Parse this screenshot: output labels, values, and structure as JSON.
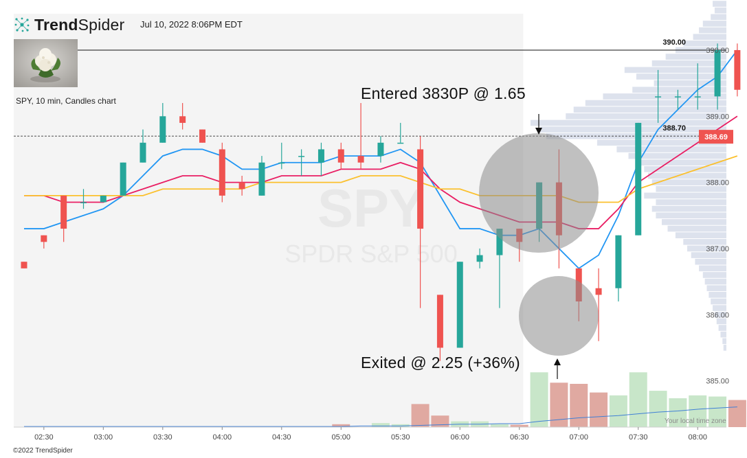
{
  "brand": {
    "name_bold": "Trend",
    "name_light": "Spider",
    "logo_icon": "spider-dots-icon",
    "accent": "#26a69a"
  },
  "header": {
    "datetime": "Jul 10, 2022 8:06PM EDT"
  },
  "thumbnail": {
    "icon": "cauliflower-photo"
  },
  "chart_info": {
    "symbol_line": "SPY, 10 min, Candles chart",
    "watermark_symbol": "SPY",
    "watermark_name": "SPDR S&P 500"
  },
  "annotations": {
    "entered": "Entered 3830P @ 1.65",
    "exited": "Exited @ 2.25 (+36%)"
  },
  "footer": {
    "copyright": "©2022 TrendSpider",
    "timezone_note": "Your local time zone"
  },
  "chart_data": {
    "type": "candlestick",
    "interval": "10 min",
    "x_ticks": [
      "02:30",
      "03:00",
      "03:30",
      "04:00",
      "04:30",
      "05:00",
      "05:30",
      "06:00",
      "06:30",
      "07:00",
      "07:30",
      "08:00"
    ],
    "y_ticks": [
      385.0,
      386.0,
      387.0,
      388.0,
      389.0,
      390.0
    ],
    "ylim": [
      384.3,
      390.55
    ],
    "price_labels": {
      "resistance": "390.00",
      "level": "388.70",
      "last": "388.69"
    },
    "levels": {
      "resistance": 390.0,
      "dashed": 388.7,
      "last": 388.69
    },
    "candles": [
      {
        "o": 386.8,
        "h": 386.8,
        "l": 386.7,
        "c": 386.7
      },
      {
        "o": 387.2,
        "h": 387.2,
        "l": 387.0,
        "c": 387.1
      },
      {
        "o": 387.8,
        "h": 387.8,
        "l": 387.1,
        "c": 387.3
      },
      {
        "o": 387.7,
        "h": 387.9,
        "l": 387.6,
        "c": 387.7
      },
      {
        "o": 387.7,
        "h": 387.8,
        "l": 387.7,
        "c": 387.8
      },
      {
        "o": 387.8,
        "h": 388.3,
        "l": 387.8,
        "c": 388.3
      },
      {
        "o": 388.3,
        "h": 388.8,
        "l": 388.3,
        "c": 388.6
      },
      {
        "o": 388.6,
        "h": 389.2,
        "l": 388.6,
        "c": 389.0
      },
      {
        "o": 389.0,
        "h": 389.2,
        "l": 388.8,
        "c": 388.9
      },
      {
        "o": 388.8,
        "h": 388.8,
        "l": 388.6,
        "c": 388.6
      },
      {
        "o": 388.5,
        "h": 388.6,
        "l": 387.7,
        "c": 387.8
      },
      {
        "o": 388.0,
        "h": 388.1,
        "l": 387.8,
        "c": 387.9
      },
      {
        "o": 387.8,
        "h": 388.4,
        "l": 387.8,
        "c": 388.3
      },
      {
        "o": 388.3,
        "h": 388.6,
        "l": 388.2,
        "c": 388.3
      },
      {
        "o": 388.4,
        "h": 388.5,
        "l": 388.1,
        "c": 388.4
      },
      {
        "o": 388.3,
        "h": 388.6,
        "l": 388.1,
        "c": 388.5
      },
      {
        "o": 388.5,
        "h": 388.6,
        "l": 388.2,
        "c": 388.3
      },
      {
        "o": 388.4,
        "h": 389.2,
        "l": 388.2,
        "c": 388.3
      },
      {
        "o": 388.4,
        "h": 388.7,
        "l": 388.3,
        "c": 388.6
      },
      {
        "o": 388.6,
        "h": 388.9,
        "l": 388.6,
        "c": 388.6
      },
      {
        "o": 388.5,
        "h": 388.7,
        "l": 386.1,
        "c": 387.3
      },
      {
        "o": 386.3,
        "h": 386.3,
        "l": 385.3,
        "c": 385.5
      },
      {
        "o": 385.5,
        "h": 386.8,
        "l": 385.5,
        "c": 386.8
      },
      {
        "o": 386.8,
        "h": 387.0,
        "l": 386.7,
        "c": 386.9
      },
      {
        "o": 386.9,
        "h": 387.3,
        "l": 386.1,
        "c": 387.3
      },
      {
        "o": 387.3,
        "h": 387.3,
        "l": 386.8,
        "c": 387.1
      },
      {
        "o": 387.3,
        "h": 388.0,
        "l": 387.1,
        "c": 388.0
      },
      {
        "o": 388.0,
        "h": 388.5,
        "l": 386.7,
        "c": 387.2
      },
      {
        "o": 386.7,
        "h": 386.7,
        "l": 385.9,
        "c": 386.2
      },
      {
        "o": 386.4,
        "h": 386.7,
        "l": 385.6,
        "c": 386.3
      },
      {
        "o": 386.4,
        "h": 387.2,
        "l": 386.2,
        "c": 387.2
      },
      {
        "o": 387.2,
        "h": 388.9,
        "l": 387.2,
        "c": 388.9
      },
      {
        "o": 389.3,
        "h": 389.7,
        "l": 388.9,
        "c": 389.3
      },
      {
        "o": 389.3,
        "h": 389.4,
        "l": 389.1,
        "c": 389.3
      },
      {
        "o": 389.3,
        "h": 389.8,
        "l": 389.1,
        "c": 389.3
      },
      {
        "o": 389.3,
        "h": 390.1,
        "l": 389.1,
        "c": 390.0
      },
      {
        "o": 390.0,
        "h": 390.1,
        "l": 389.3,
        "c": 389.4
      }
    ],
    "volume": [
      0,
      0,
      0,
      0,
      0,
      0,
      0,
      0,
      0,
      0,
      0,
      0,
      0,
      0,
      0,
      0,
      0.05,
      0,
      0.07,
      0.05,
      0.4,
      0.2,
      0.1,
      0.1,
      0.05,
      0.04,
      0.95,
      0.77,
      0.75,
      0.6,
      0.55,
      0.95,
      0.63,
      0.5,
      0.55,
      0.53,
      0.47
    ],
    "volume_trend": [
      0.01,
      0.01,
      0.01,
      0.01,
      0.01,
      0.01,
      0.01,
      0.01,
      0.01,
      0.01,
      0.01,
      0.01,
      0.01,
      0.01,
      0.01,
      0.01,
      0.01,
      0.02,
      0.02,
      0.02,
      0.03,
      0.04,
      0.05,
      0.05,
      0.06,
      0.06,
      0.1,
      0.13,
      0.16,
      0.18,
      0.2,
      0.23,
      0.26,
      0.28,
      0.31,
      0.33,
      0.35
    ],
    "series": [
      {
        "color": "#2196f3",
        "values": [
          387.3,
          387.3,
          387.4,
          387.5,
          387.6,
          387.8,
          388.1,
          388.4,
          388.5,
          388.5,
          388.4,
          388.2,
          388.2,
          388.3,
          388.3,
          388.3,
          388.4,
          388.4,
          388.4,
          388.5,
          388.3,
          387.8,
          387.3,
          387.3,
          387.2,
          387.2,
          387.3,
          387.0,
          386.7,
          386.9,
          387.5,
          388.3,
          388.8,
          389.1,
          389.4,
          389.6,
          390.0
        ]
      },
      {
        "color": "#e91e63",
        "values": [
          387.8,
          387.8,
          387.7,
          387.7,
          387.7,
          387.8,
          387.9,
          388.0,
          388.1,
          388.1,
          388.0,
          388.0,
          388.0,
          388.1,
          388.1,
          388.1,
          388.2,
          388.2,
          388.2,
          388.3,
          388.2,
          387.9,
          387.7,
          387.6,
          387.5,
          387.4,
          387.4,
          387.4,
          387.3,
          387.3,
          387.6,
          388.0,
          388.2,
          388.4,
          388.6,
          388.8,
          389.0
        ]
      },
      {
        "color": "#fbc02d",
        "values": [
          387.8,
          387.8,
          387.8,
          387.8,
          387.8,
          387.8,
          387.8,
          387.9,
          387.9,
          387.9,
          387.9,
          387.9,
          388.0,
          388.0,
          388.0,
          388.0,
          388.0,
          388.1,
          388.1,
          388.1,
          388.0,
          387.9,
          387.9,
          387.8,
          387.8,
          387.8,
          387.8,
          387.8,
          387.7,
          387.7,
          387.7,
          387.9,
          388.0,
          388.1,
          388.2,
          388.3,
          388.4
        ]
      }
    ],
    "volume_profile": [
      {
        "p": 390.7,
        "w": 0.07
      },
      {
        "p": 390.6,
        "w": 0.06
      },
      {
        "p": 390.5,
        "w": 0.08
      },
      {
        "p": 390.4,
        "w": 0.12
      },
      {
        "p": 390.3,
        "w": 0.14
      },
      {
        "p": 390.2,
        "w": 0.17
      },
      {
        "p": 390.1,
        "w": 0.22
      },
      {
        "p": 390.0,
        "w": 0.26
      },
      {
        "p": 389.9,
        "w": 0.31
      },
      {
        "p": 389.8,
        "w": 0.38
      },
      {
        "p": 389.7,
        "w": 0.52
      },
      {
        "p": 389.6,
        "w": 0.46
      },
      {
        "p": 389.5,
        "w": 0.37
      },
      {
        "p": 389.4,
        "w": 0.48
      },
      {
        "p": 389.3,
        "w": 0.63
      },
      {
        "p": 389.2,
        "w": 0.72
      },
      {
        "p": 389.1,
        "w": 0.78
      },
      {
        "p": 389.0,
        "w": 0.82
      },
      {
        "p": 388.9,
        "w": 1.0
      },
      {
        "p": 388.8,
        "w": 0.95
      },
      {
        "p": 388.7,
        "w": 0.92
      },
      {
        "p": 388.6,
        "w": 0.66
      },
      {
        "p": 388.5,
        "w": 0.56
      },
      {
        "p": 388.4,
        "w": 0.5
      },
      {
        "p": 388.3,
        "w": 0.44
      },
      {
        "p": 388.2,
        "w": 0.42
      },
      {
        "p": 388.1,
        "w": 0.4
      },
      {
        "p": 388.0,
        "w": 0.38
      },
      {
        "p": 387.9,
        "w": 0.36
      },
      {
        "p": 387.8,
        "w": 0.42
      },
      {
        "p": 387.7,
        "w": 0.36
      },
      {
        "p": 387.6,
        "w": 0.38
      },
      {
        "p": 387.5,
        "w": 0.36
      },
      {
        "p": 387.4,
        "w": 0.33
      },
      {
        "p": 387.3,
        "w": 0.3
      },
      {
        "p": 387.2,
        "w": 0.26
      },
      {
        "p": 387.1,
        "w": 0.22
      },
      {
        "p": 387.0,
        "w": 0.2
      },
      {
        "p": 386.9,
        "w": 0.18
      },
      {
        "p": 386.8,
        "w": 0.16
      },
      {
        "p": 386.7,
        "w": 0.14
      },
      {
        "p": 386.6,
        "w": 0.12
      },
      {
        "p": 386.5,
        "w": 0.11
      },
      {
        "p": 386.4,
        "w": 0.1
      },
      {
        "p": 386.3,
        "w": 0.09
      },
      {
        "p": 386.2,
        "w": 0.08
      },
      {
        "p": 386.1,
        "w": 0.07
      },
      {
        "p": 386.0,
        "w": 0.06
      },
      {
        "p": 385.9,
        "w": 0.05
      },
      {
        "p": 385.8,
        "w": 0.04
      },
      {
        "p": 385.7,
        "w": 0.03
      },
      {
        "p": 385.6,
        "w": 0.02
      },
      {
        "p": 385.5,
        "w": 0.015
      }
    ],
    "colors": {
      "up": "#26a69a",
      "down": "#ef5350",
      "up_volume": "#c8e6c9",
      "down_volume": "#e0a9a1",
      "profile": "#dde2ed",
      "premarket_shade": "#f4f4f4",
      "last_price_tag": "#ef5350"
    }
  }
}
